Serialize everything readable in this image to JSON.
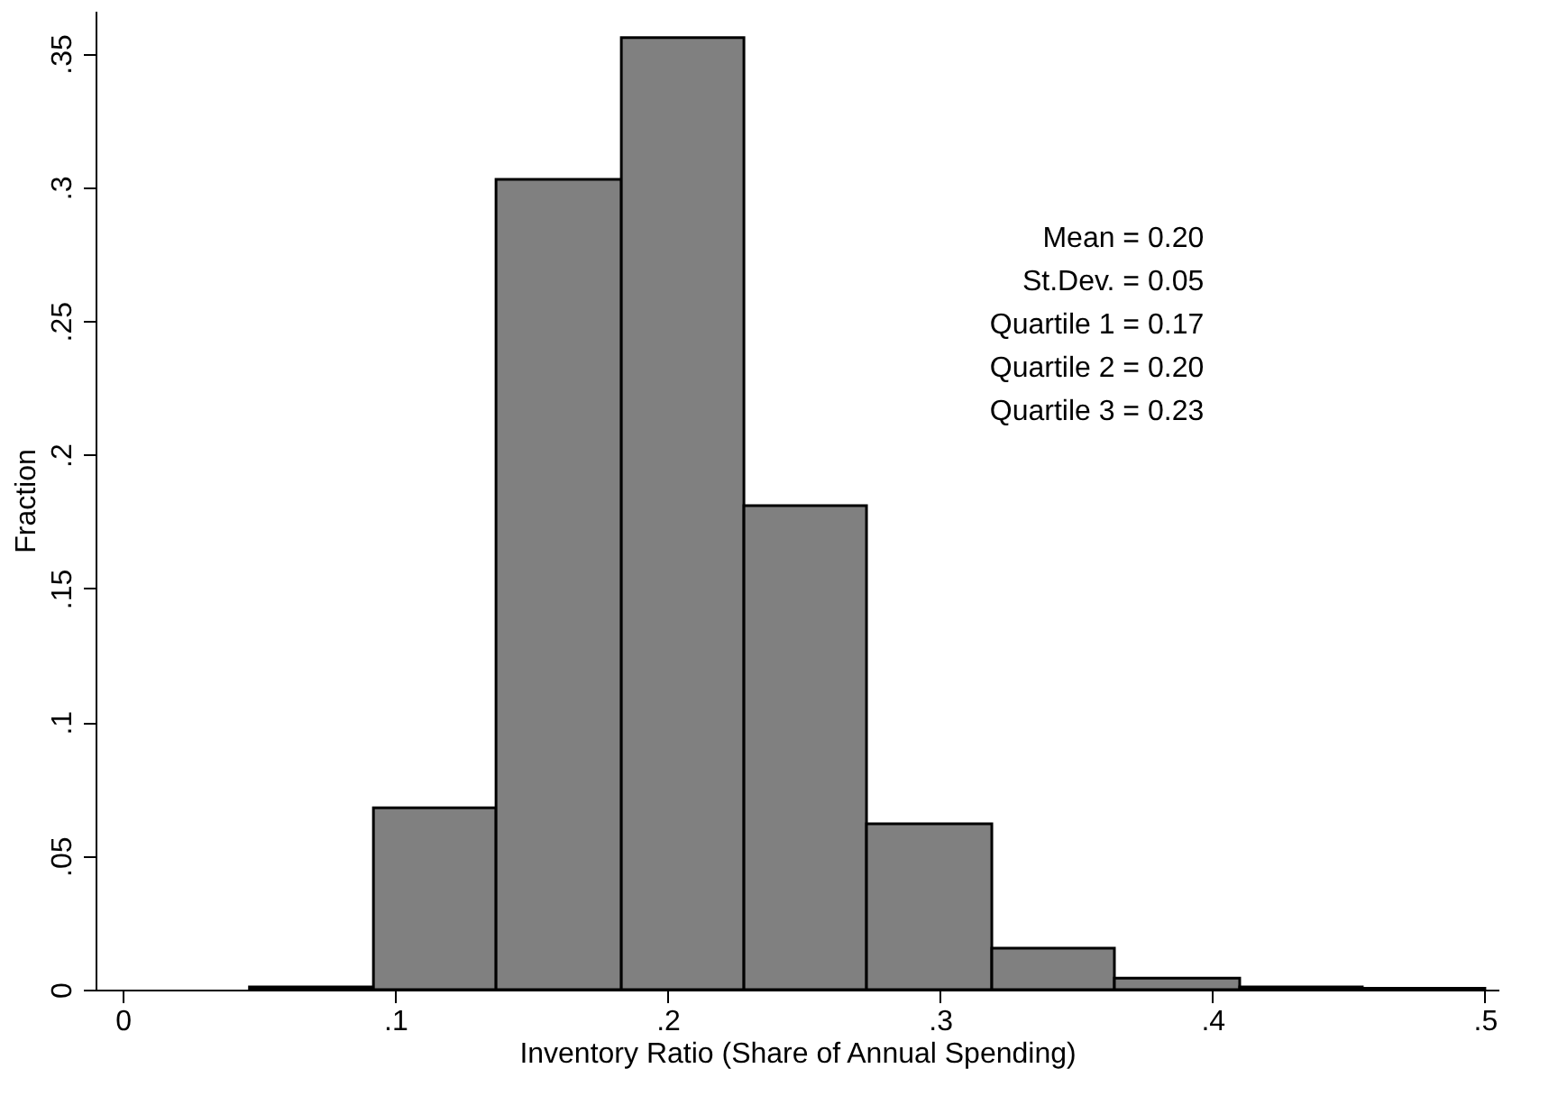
{
  "chart_data": {
    "type": "histogram",
    "xlabel": "Inventory Ratio (Share of Annual Spending)",
    "ylabel": "Fraction",
    "bins": [
      0.0465,
      0.092,
      0.137,
      0.183,
      0.228,
      0.273,
      0.319,
      0.364,
      0.41,
      0.455,
      0.5
    ],
    "values": [
      0.001,
      0.068,
      0.303,
      0.356,
      0.181,
      0.062,
      0.0155,
      0.0043,
      0.001,
      0.0005
    ],
    "color": "#808080",
    "xlim": [
      -0.01,
      0.505
    ],
    "xticks": [
      0,
      {
        "value": 0.1,
        "label": ".1"
      },
      {
        "value": 0.2,
        "label": ".2"
      },
      {
        "value": 0.3,
        "label": ".3"
      },
      {
        "value": 0.4,
        "label": ".4"
      },
      {
        "value": 0.5,
        "label": ".5"
      }
    ],
    "ylim": [
      0,
      0.366
    ],
    "yticks": [
      0,
      {
        "value": 0.05,
        "label": ".05"
      },
      {
        "value": 0.1,
        "label": ".1"
      },
      {
        "value": 0.15,
        "label": ".15"
      },
      {
        "value": 0.2,
        "label": ".2"
      },
      {
        "value": 0.25,
        "label": ".25"
      },
      {
        "value": 0.3,
        "label": ".3"
      },
      {
        "value": 0.35,
        "label": ".35"
      }
    ],
    "annotations": [
      "Mean = 0.20",
      "St.Dev. = 0.05",
      "Quartile 1 = 0.17",
      "Quartile 2 = 0.20",
      "Quartile 3 = 0.23"
    ],
    "grid": false
  }
}
